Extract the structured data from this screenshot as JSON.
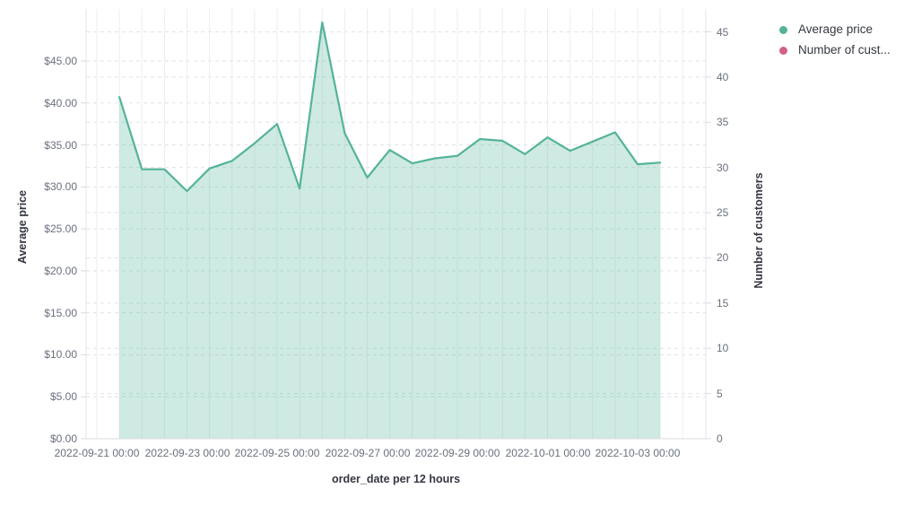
{
  "page": {
    "background": "#ffffff"
  },
  "legend": {
    "items": [
      {
        "label": "Average price",
        "color": "#54b399"
      },
      {
        "label": "Number of cust...",
        "color": "#d36086"
      }
    ]
  },
  "chart_data": {
    "type": "area",
    "title": "",
    "xlabel": "order_date per 12 hours",
    "x_tick_labels": [
      "2022-09-21 00:00",
      "2022-09-23 00:00",
      "2022-09-25 00:00",
      "2022-09-27 00:00",
      "2022-09-29 00:00",
      "2022-10-01 00:00",
      "2022-10-03 00:00"
    ],
    "left_axis": {
      "title": "Average price",
      "tick_values": [
        0,
        5,
        10,
        15,
        20,
        25,
        30,
        35,
        40,
        45
      ],
      "tick_labels": [
        "$0.00",
        "$5.00",
        "$10.00",
        "$15.00",
        "$20.00",
        "$25.00",
        "$30.00",
        "$35.00",
        "$40.00",
        "$45.00"
      ],
      "range": [
        0,
        49.7
      ]
    },
    "right_axis": {
      "title": "Number of customers",
      "tick_values": [
        0,
        5,
        10,
        15,
        20,
        25,
        30,
        35,
        40,
        45
      ],
      "tick_labels": [
        "0",
        "5",
        "10",
        "15",
        "20",
        "25",
        "30",
        "35",
        "40",
        "45"
      ],
      "range": [
        0,
        47.6
      ]
    },
    "grid": {
      "horizontal": "dashed, one set per axis",
      "vertical": "solid, every 12 hours",
      "legend_position": "top-right"
    },
    "series": [
      {
        "name": "Average price",
        "color": "#54b399",
        "axis": "left",
        "type": "area",
        "x": [
          "2022-09-21 12:00",
          "2022-09-22 00:00",
          "2022-09-22 12:00",
          "2022-09-23 00:00",
          "2022-09-23 12:00",
          "2022-09-24 00:00",
          "2022-09-24 12:00",
          "2022-09-25 00:00",
          "2022-09-25 12:00",
          "2022-09-26 00:00",
          "2022-09-26 12:00",
          "2022-09-27 00:00",
          "2022-09-27 12:00",
          "2022-09-28 00:00",
          "2022-09-28 12:00",
          "2022-09-29 00:00",
          "2022-09-29 12:00",
          "2022-09-30 00:00",
          "2022-09-30 12:00",
          "2022-10-01 00:00",
          "2022-10-01 12:00",
          "2022-10-02 00:00",
          "2022-10-02 12:00",
          "2022-10-03 00:00",
          "2022-10-03 12:00"
        ],
        "values": [
          40.7,
          32.1,
          32.1,
          29.5,
          32.2,
          33.1,
          35.2,
          37.5,
          29.8,
          49.6,
          36.4,
          31.1,
          34.4,
          32.8,
          33.4,
          33.7,
          35.7,
          35.5,
          33.9,
          35.9,
          34.3,
          35.4,
          36.5,
          32.7,
          32.9
        ]
      },
      {
        "name": "Number of cust...",
        "color": "#d36086",
        "axis": "right",
        "type": "line",
        "values": []
      }
    ]
  }
}
